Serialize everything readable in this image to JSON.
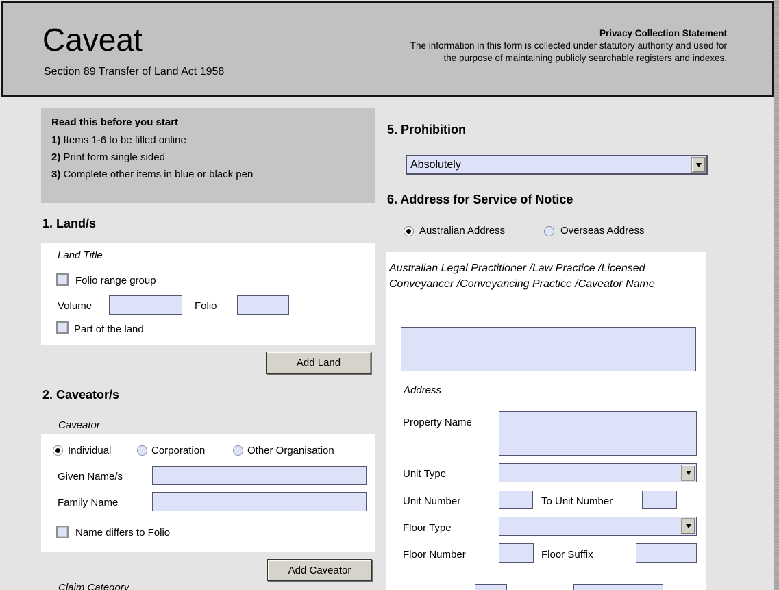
{
  "header": {
    "title": "Caveat",
    "subtitle": "Section 89 Transfer of Land Act 1958",
    "privacy_title": "Privacy Collection Statement",
    "privacy_body": "The information in this form is collected under statutory authority and used for the purpose of maintaining publicly searchable registers and indexes."
  },
  "notice": {
    "title": "Read this before you start",
    "items": [
      {
        "num": "1)",
        "text": "Items 1-6 to be filled online"
      },
      {
        "num": "2)",
        "text": "Print form single sided"
      },
      {
        "num": "3)",
        "text": "Complete other items in blue or black pen"
      }
    ]
  },
  "land": {
    "heading": "1. Land/s",
    "group_label": "Land Title",
    "folio_range_label": "Folio range group",
    "folio_range_checked": false,
    "volume_label": "Volume",
    "volume_value": "",
    "folio_label": "Folio",
    "folio_value": "",
    "part_label": "Part of the land",
    "part_checked": false,
    "add_button": "Add Land"
  },
  "caveator": {
    "heading": "2. Caveator/s",
    "group_label": "Caveator",
    "options": [
      "Individual",
      "Corporation",
      "Other Organisation"
    ],
    "selected_option": "Individual",
    "given_label": "Given Name/s",
    "given_value": "",
    "family_label": "Family Name",
    "family_value": "",
    "name_differs_label": "Name differs to Folio",
    "name_differs_checked": false,
    "add_button": "Add Caveator",
    "next_label": "Claim Category"
  },
  "prohibition": {
    "heading": "5. Prohibition",
    "value": "Absolutely"
  },
  "service": {
    "heading": "6. Address for Service of Notice",
    "options": [
      "Australian Address",
      "Overseas Address"
    ],
    "selected_option": "Australian Address",
    "practitioner_label": "Australian Legal Practitioner /Law Practice /Licensed Conveyancer /Conveyancing Practice /Caveator Name",
    "practitioner_value": "",
    "address_label": "Address",
    "property_label": "Property Name",
    "property_value": "",
    "unit_type_label": "Unit Type",
    "unit_type_value": "",
    "unit_number_label": "Unit Number",
    "unit_number_value": "",
    "to_unit_number_label": "To Unit Number",
    "to_unit_number_value": "",
    "floor_type_label": "Floor Type",
    "floor_type_value": "",
    "floor_number_label": "Floor Number",
    "floor_number_value": "",
    "floor_suffix_label": "Floor Suffix",
    "floor_suffix_value": ""
  },
  "colors": {
    "header_bg": "#c1c1c1",
    "page_bg": "#e4e4e4",
    "notice_bg": "#c5c5c5",
    "panel_bg": "#ffffff",
    "input_bg": "#dde2f8",
    "input_border": "#565672",
    "button_bg": "#d6d3cb"
  }
}
